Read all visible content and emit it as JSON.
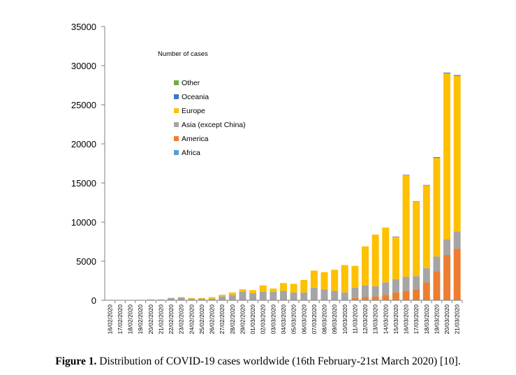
{
  "caption": {
    "label": "Figure 1.",
    "text": " Distribution of COVID-19 cases worldwide (16th February-21st March 2020) [10]."
  },
  "chart_data": {
    "type": "bar",
    "stacked": true,
    "title": "Number of cases",
    "xlabel": "",
    "ylabel": "",
    "ylim": [
      0,
      35000
    ],
    "yticks": [
      0,
      5000,
      10000,
      15000,
      20000,
      25000,
      30000,
      35000
    ],
    "grid": false,
    "legend_position": "top-left",
    "categories": [
      "16/02/2020",
      "17/02/2020",
      "18/02/2020",
      "19/02/2020",
      "20/02/2020",
      "21/02/2020",
      "22/02/2020",
      "23/02/2020",
      "24/02/2020",
      "25/02/2020",
      "26/02/2020",
      "27/02/2020",
      "28/02/2020",
      "29/02/2020",
      "01/03/2020",
      "02/03/2020",
      "03/03/2020",
      "04/03/2020",
      "05/03/2020",
      "06/03/2020",
      "07/03/2020",
      "08/03/2020",
      "09/03/2020",
      "10/03/2020",
      "11/03/2020",
      "12/03/2020",
      "13/03/2020",
      "14/03/2020",
      "15/03/2020",
      "16/03/2020",
      "17/03/2020",
      "18/03/2020",
      "19/03/2020",
      "20/03/2020",
      "21/03/2020"
    ],
    "series": [
      {
        "name": "Africa",
        "color": "#5b9bd5",
        "values": [
          0,
          0,
          0,
          0,
          0,
          0,
          0,
          0,
          0,
          0,
          0,
          0,
          0,
          0,
          0,
          0,
          0,
          0,
          0,
          0,
          0,
          0,
          0,
          0,
          0,
          0,
          0,
          0,
          0,
          0,
          0,
          0,
          0,
          0,
          0
        ]
      },
      {
        "name": "America",
        "color": "#ed7d31",
        "values": [
          0,
          0,
          0,
          0,
          0,
          0,
          0,
          0,
          0,
          0,
          0,
          0,
          0,
          0,
          0,
          0,
          0,
          0,
          0,
          0,
          0,
          0,
          0,
          0,
          300,
          400,
          500,
          700,
          1000,
          1200,
          1400,
          2300,
          3700,
          5800,
          6600
        ]
      },
      {
        "name": "Asia (except China)",
        "color": "#a5a5a5",
        "values": [
          50,
          40,
          40,
          60,
          100,
          100,
          300,
          350,
          200,
          200,
          200,
          500,
          700,
          1100,
          900,
          1100,
          1100,
          1200,
          1000,
          1000,
          1600,
          1400,
          1200,
          1000,
          1300,
          1500,
          1300,
          1600,
          1700,
          1800,
          1700,
          1800,
          1900,
          2000,
          2200
        ]
      },
      {
        "name": "Europe",
        "color": "#ffc000",
        "values": [
          0,
          0,
          0,
          0,
          0,
          0,
          0,
          50,
          100,
          100,
          200,
          200,
          300,
          300,
          400,
          800,
          400,
          1000,
          1100,
          1600,
          2200,
          2200,
          2700,
          3500,
          2800,
          5000,
          6600,
          7000,
          5400,
          13000,
          9500,
          10600,
          12600,
          21200,
          19900
        ]
      },
      {
        "name": "Oceania",
        "color": "#4472c4",
        "values": [
          0,
          0,
          0,
          0,
          0,
          0,
          0,
          0,
          0,
          0,
          0,
          0,
          0,
          0,
          0,
          0,
          0,
          0,
          0,
          0,
          0,
          0,
          0,
          0,
          0,
          0,
          0,
          0,
          50,
          50,
          50,
          50,
          100,
          100,
          100
        ]
      },
      {
        "name": "Other",
        "color": "#70ad47",
        "values": [
          0,
          0,
          0,
          0,
          0,
          0,
          0,
          0,
          0,
          0,
          0,
          0,
          0,
          0,
          0,
          0,
          0,
          0,
          0,
          0,
          0,
          0,
          0,
          0,
          0,
          0,
          0,
          0,
          0,
          0,
          0,
          0,
          0,
          0,
          0
        ]
      }
    ],
    "legend_order": [
      "Other",
      "Oceania",
      "Europe",
      "Asia (except China)",
      "America",
      "Africa"
    ]
  }
}
